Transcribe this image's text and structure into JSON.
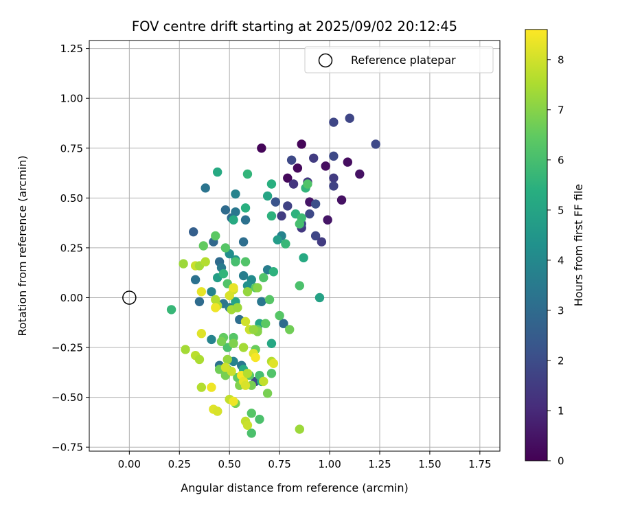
{
  "chart_data": {
    "type": "scatter",
    "title": "FOV centre drift starting at 2025/09/02 20:12:45",
    "xlabel": "Angular distance from reference (arcmin)",
    "ylabel": "Rotation from reference (arcmin)",
    "xlim": [
      -0.2,
      1.85
    ],
    "ylim": [
      -0.77,
      1.29
    ],
    "xticks": [
      0.0,
      0.25,
      0.5,
      0.75,
      1.0,
      1.25,
      1.5,
      1.75
    ],
    "xtick_labels": [
      "0.00",
      "0.25",
      "0.50",
      "0.75",
      "1.00",
      "1.25",
      "1.50",
      "1.75"
    ],
    "yticks": [
      -0.75,
      -0.5,
      -0.25,
      0.0,
      0.25,
      0.5,
      0.75,
      1.0,
      1.25
    ],
    "ytick_labels": [
      "−0.75",
      "−0.50",
      "−0.25",
      "0.00",
      "0.25",
      "0.50",
      "0.75",
      "1.00",
      "1.25"
    ],
    "grid": true,
    "legend": {
      "label": "Reference platepar",
      "placement": "top-right"
    },
    "reference_point": {
      "x": 0.0,
      "y": 0.0
    },
    "colorbar": {
      "label": "Hours from first FF file",
      "range": [
        0,
        8.6
      ],
      "ticks": [
        0,
        1,
        2,
        3,
        4,
        5,
        6,
        7,
        8
      ],
      "tick_labels": [
        "0",
        "1",
        "2",
        "3",
        "4",
        "5",
        "6",
        "7",
        "8"
      ],
      "colormap": "viridis"
    },
    "points": [
      {
        "x": 0.66,
        "y": 0.75,
        "h": 0.1
      },
      {
        "x": 0.86,
        "y": 0.77,
        "h": 0.1
      },
      {
        "x": 0.84,
        "y": 0.65,
        "h": 0.2
      },
      {
        "x": 0.79,
        "y": 0.6,
        "h": 0.2
      },
      {
        "x": 0.98,
        "y": 0.66,
        "h": 0.3
      },
      {
        "x": 1.09,
        "y": 0.68,
        "h": 0.3
      },
      {
        "x": 1.15,
        "y": 0.62,
        "h": 0.4
      },
      {
        "x": 1.06,
        "y": 0.49,
        "h": 0.4
      },
      {
        "x": 0.9,
        "y": 0.48,
        "h": 0.5
      },
      {
        "x": 0.99,
        "y": 0.39,
        "h": 0.5
      },
      {
        "x": 1.02,
        "y": 0.88,
        "h": 1.8
      },
      {
        "x": 1.1,
        "y": 0.9,
        "h": 1.8
      },
      {
        "x": 1.23,
        "y": 0.77,
        "h": 1.9
      },
      {
        "x": 1.02,
        "y": 0.71,
        "h": 1.9
      },
      {
        "x": 0.92,
        "y": 0.7,
        "h": 1.5
      },
      {
        "x": 0.81,
        "y": 0.69,
        "h": 1.9
      },
      {
        "x": 0.82,
        "y": 0.57,
        "h": 1.3
      },
      {
        "x": 0.89,
        "y": 0.58,
        "h": 1.4
      },
      {
        "x": 1.02,
        "y": 0.6,
        "h": 1.5
      },
      {
        "x": 1.02,
        "y": 0.56,
        "h": 1.7
      },
      {
        "x": 0.73,
        "y": 0.48,
        "h": 2.2
      },
      {
        "x": 0.79,
        "y": 0.46,
        "h": 1.7
      },
      {
        "x": 0.76,
        "y": 0.41,
        "h": 1.5
      },
      {
        "x": 0.93,
        "y": 0.47,
        "h": 2.1
      },
      {
        "x": 0.9,
        "y": 0.42,
        "h": 1.9
      },
      {
        "x": 0.86,
        "y": 0.35,
        "h": 1.4
      },
      {
        "x": 0.93,
        "y": 0.31,
        "h": 1.8
      },
      {
        "x": 0.96,
        "y": 0.28,
        "h": 1.5
      },
      {
        "x": 0.86,
        "y": 0.37,
        "h": 1.9
      },
      {
        "x": 0.63,
        "y": -0.42,
        "h": 2.0
      },
      {
        "x": 0.38,
        "y": 0.55,
        "h": 3.3
      },
      {
        "x": 0.32,
        "y": 0.33,
        "h": 2.6
      },
      {
        "x": 0.48,
        "y": 0.44,
        "h": 3.0
      },
      {
        "x": 0.51,
        "y": 0.4,
        "h": 3.1
      },
      {
        "x": 0.53,
        "y": 0.43,
        "h": 3.4
      },
      {
        "x": 0.53,
        "y": 0.52,
        "h": 3.8
      },
      {
        "x": 0.58,
        "y": 0.39,
        "h": 3.2
      },
      {
        "x": 0.57,
        "y": 0.28,
        "h": 3.1
      },
      {
        "x": 0.42,
        "y": 0.28,
        "h": 2.9
      },
      {
        "x": 0.45,
        "y": 0.18,
        "h": 3.0
      },
      {
        "x": 0.46,
        "y": 0.15,
        "h": 3.5
      },
      {
        "x": 0.33,
        "y": 0.09,
        "h": 3.2
      },
      {
        "x": 0.35,
        "y": -0.02,
        "h": 3.0
      },
      {
        "x": 0.41,
        "y": 0.03,
        "h": 3.8
      },
      {
        "x": 0.47,
        "y": -0.03,
        "h": 3.3
      },
      {
        "x": 0.5,
        "y": -0.05,
        "h": 3.6
      },
      {
        "x": 0.55,
        "y": -0.11,
        "h": 3.1
      },
      {
        "x": 0.57,
        "y": 0.11,
        "h": 3.6
      },
      {
        "x": 0.61,
        "y": 0.09,
        "h": 4.1
      },
      {
        "x": 0.69,
        "y": 0.14,
        "h": 3.6
      },
      {
        "x": 0.66,
        "y": -0.02,
        "h": 3.4
      },
      {
        "x": 0.77,
        "y": -0.13,
        "h": 3.0
      },
      {
        "x": 0.41,
        "y": -0.21,
        "h": 3.8
      },
      {
        "x": 0.45,
        "y": -0.34,
        "h": 3.2
      },
      {
        "x": 0.56,
        "y": -0.34,
        "h": 3.4
      },
      {
        "x": 0.52,
        "y": -0.32,
        "h": 3.8
      },
      {
        "x": 0.76,
        "y": 0.31,
        "h": 3.8
      },
      {
        "x": 0.74,
        "y": 0.29,
        "h": 4.7
      },
      {
        "x": 0.52,
        "y": 0.39,
        "h": 5.2
      },
      {
        "x": 0.58,
        "y": 0.45,
        "h": 5.4
      },
      {
        "x": 0.44,
        "y": 0.63,
        "h": 5.2
      },
      {
        "x": 0.59,
        "y": 0.62,
        "h": 5.6
      },
      {
        "x": 0.69,
        "y": 0.51,
        "h": 5.0
      },
      {
        "x": 0.71,
        "y": 0.57,
        "h": 5.4
      },
      {
        "x": 0.71,
        "y": 0.41,
        "h": 5.5
      },
      {
        "x": 0.83,
        "y": 0.42,
        "h": 5.5
      },
      {
        "x": 0.86,
        "y": 0.4,
        "h": 5.8
      },
      {
        "x": 0.88,
        "y": 0.55,
        "h": 5.6
      },
      {
        "x": 0.95,
        "y": 0.0,
        "h": 4.9
      },
      {
        "x": 0.21,
        "y": -0.06,
        "h": 5.7
      },
      {
        "x": 0.87,
        "y": 0.2,
        "h": 5.2
      },
      {
        "x": 0.78,
        "y": 0.27,
        "h": 5.7
      },
      {
        "x": 0.53,
        "y": 0.19,
        "h": 4.5
      },
      {
        "x": 0.5,
        "y": 0.22,
        "h": 4.2
      },
      {
        "x": 0.44,
        "y": 0.1,
        "h": 4.8
      },
      {
        "x": 0.47,
        "y": 0.12,
        "h": 5.6
      },
      {
        "x": 0.59,
        "y": 0.06,
        "h": 4.3
      },
      {
        "x": 0.53,
        "y": -0.02,
        "h": 5.0
      },
      {
        "x": 0.65,
        "y": -0.13,
        "h": 5.0
      },
      {
        "x": 0.72,
        "y": 0.13,
        "h": 5.5
      },
      {
        "x": 0.71,
        "y": -0.23,
        "h": 5.1
      },
      {
        "x": 0.57,
        "y": -0.36,
        "h": 5.3
      },
      {
        "x": 0.66,
        "y": -0.42,
        "h": 5.4
      },
      {
        "x": 0.85,
        "y": 0.06,
        "h": 6.1
      },
      {
        "x": 0.85,
        "y": 0.37,
        "h": 6.0
      },
      {
        "x": 0.89,
        "y": 0.57,
        "h": 6.2
      },
      {
        "x": 0.58,
        "y": 0.18,
        "h": 6.2
      },
      {
        "x": 0.53,
        "y": 0.18,
        "h": 6.0
      },
      {
        "x": 0.48,
        "y": 0.25,
        "h": 6.3
      },
      {
        "x": 0.43,
        "y": 0.31,
        "h": 6.4
      },
      {
        "x": 0.37,
        "y": 0.26,
        "h": 6.5
      },
      {
        "x": 0.49,
        "y": 0.07,
        "h": 6.2
      },
      {
        "x": 0.63,
        "y": 0.05,
        "h": 6.4
      },
      {
        "x": 0.67,
        "y": 0.1,
        "h": 6.2
      },
      {
        "x": 0.7,
        "y": -0.01,
        "h": 6.3
      },
      {
        "x": 0.75,
        "y": -0.09,
        "h": 6.3
      },
      {
        "x": 0.8,
        "y": -0.16,
        "h": 6.7
      },
      {
        "x": 0.68,
        "y": -0.13,
        "h": 6.4
      },
      {
        "x": 0.64,
        "y": -0.16,
        "h": 6.5
      },
      {
        "x": 0.52,
        "y": -0.2,
        "h": 6.3
      },
      {
        "x": 0.47,
        "y": -0.2,
        "h": 6.5
      },
      {
        "x": 0.49,
        "y": -0.25,
        "h": 6.1
      },
      {
        "x": 0.45,
        "y": -0.36,
        "h": 6.7
      },
      {
        "x": 0.49,
        "y": -0.36,
        "h": 6.2
      },
      {
        "x": 0.54,
        "y": -0.4,
        "h": 6.5
      },
      {
        "x": 0.6,
        "y": -0.39,
        "h": 6.4
      },
      {
        "x": 0.65,
        "y": -0.39,
        "h": 6.0
      },
      {
        "x": 0.71,
        "y": -0.38,
        "h": 6.2
      },
      {
        "x": 0.69,
        "y": -0.48,
        "h": 6.8
      },
      {
        "x": 0.61,
        "y": -0.58,
        "h": 6.3
      },
      {
        "x": 0.65,
        "y": -0.61,
        "h": 6.1
      },
      {
        "x": 0.61,
        "y": -0.68,
        "h": 6.1
      },
      {
        "x": 0.44,
        "y": -0.57,
        "h": 6.5
      },
      {
        "x": 0.61,
        "y": -0.44,
        "h": 6.8
      },
      {
        "x": 0.53,
        "y": -0.53,
        "h": 6.8
      },
      {
        "x": 0.48,
        "y": -0.39,
        "h": 6.8
      },
      {
        "x": 0.55,
        "y": -0.44,
        "h": 6.9
      },
      {
        "x": 0.63,
        "y": -0.26,
        "h": 6.6
      },
      {
        "x": 0.64,
        "y": -0.17,
        "h": 7.0
      },
      {
        "x": 0.52,
        "y": -0.23,
        "h": 6.9
      },
      {
        "x": 0.46,
        "y": -0.22,
        "h": 6.8
      },
      {
        "x": 0.27,
        "y": 0.17,
        "h": 7.3
      },
      {
        "x": 0.33,
        "y": 0.16,
        "h": 7.9
      },
      {
        "x": 0.35,
        "y": 0.16,
        "h": 7.4
      },
      {
        "x": 0.38,
        "y": 0.18,
        "h": 7.6
      },
      {
        "x": 0.43,
        "y": -0.01,
        "h": 7.6
      },
      {
        "x": 0.44,
        "y": -0.04,
        "h": 7.6
      },
      {
        "x": 0.51,
        "y": -0.06,
        "h": 7.4
      },
      {
        "x": 0.52,
        "y": 0.04,
        "h": 7.9
      },
      {
        "x": 0.52,
        "y": 0.05,
        "h": 8.3
      },
      {
        "x": 0.5,
        "y": 0.01,
        "h": 8.1
      },
      {
        "x": 0.54,
        "y": -0.05,
        "h": 7.3
      },
      {
        "x": 0.36,
        "y": 0.03,
        "h": 8.3
      },
      {
        "x": 0.43,
        "y": -0.05,
        "h": 8.4
      },
      {
        "x": 0.36,
        "y": -0.18,
        "h": 8.2
      },
      {
        "x": 0.28,
        "y": -0.26,
        "h": 7.4
      },
      {
        "x": 0.33,
        "y": -0.29,
        "h": 7.7
      },
      {
        "x": 0.35,
        "y": -0.31,
        "h": 7.5
      },
      {
        "x": 0.36,
        "y": -0.45,
        "h": 7.6
      },
      {
        "x": 0.41,
        "y": -0.45,
        "h": 8.4
      },
      {
        "x": 0.42,
        "y": -0.56,
        "h": 8.2
      },
      {
        "x": 0.44,
        "y": -0.57,
        "h": 8.1
      },
      {
        "x": 0.5,
        "y": -0.51,
        "h": 7.8
      },
      {
        "x": 0.52,
        "y": -0.52,
        "h": 8.4
      },
      {
        "x": 0.49,
        "y": -0.31,
        "h": 7.2
      },
      {
        "x": 0.51,
        "y": -0.37,
        "h": 7.9
      },
      {
        "x": 0.48,
        "y": -0.35,
        "h": 8.0
      },
      {
        "x": 0.56,
        "y": -0.39,
        "h": 8.5
      },
      {
        "x": 0.57,
        "y": -0.42,
        "h": 8.3
      },
      {
        "x": 0.59,
        "y": -0.38,
        "h": 7.6
      },
      {
        "x": 0.58,
        "y": -0.44,
        "h": 8.1
      },
      {
        "x": 0.58,
        "y": -0.62,
        "h": 7.8
      },
      {
        "x": 0.59,
        "y": -0.64,
        "h": 7.9
      },
      {
        "x": 0.58,
        "y": -0.12,
        "h": 8.0
      },
      {
        "x": 0.6,
        "y": -0.16,
        "h": 7.9
      },
      {
        "x": 0.62,
        "y": -0.16,
        "h": 7.2
      },
      {
        "x": 0.57,
        "y": -0.25,
        "h": 7.4
      },
      {
        "x": 0.62,
        "y": -0.28,
        "h": 8.2
      },
      {
        "x": 0.63,
        "y": -0.3,
        "h": 8.5
      },
      {
        "x": 0.67,
        "y": -0.42,
        "h": 7.8
      },
      {
        "x": 0.71,
        "y": -0.32,
        "h": 7.6
      },
      {
        "x": 0.72,
        "y": -0.33,
        "h": 8.2
      },
      {
        "x": 0.85,
        "y": -0.66,
        "h": 7.3
      },
      {
        "x": 0.64,
        "y": 0.05,
        "h": 7.0
      },
      {
        "x": 0.59,
        "y": 0.03,
        "h": 7.2
      }
    ]
  }
}
